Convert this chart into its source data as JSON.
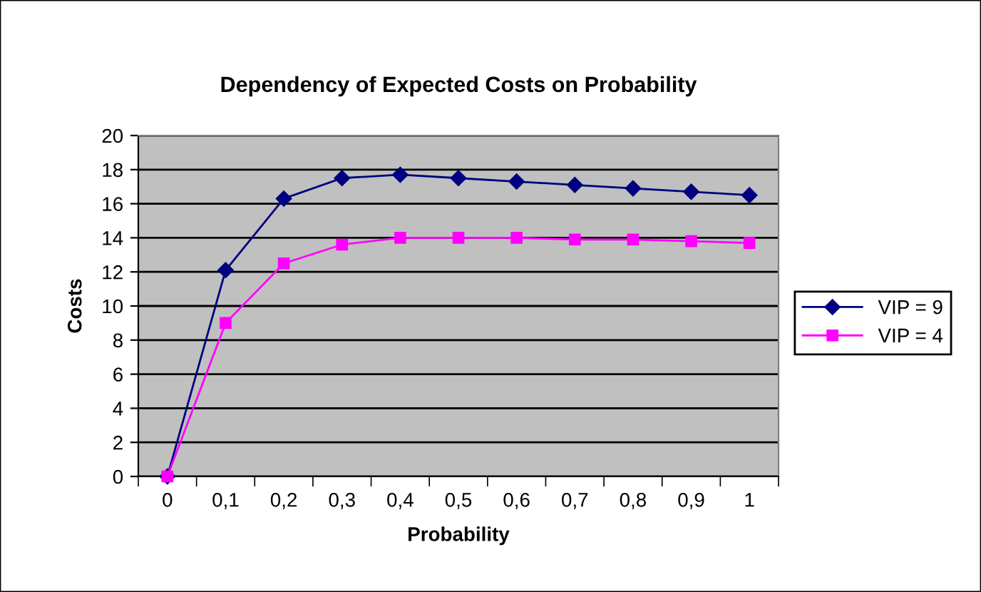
{
  "chart_data": {
    "type": "line",
    "title": "Dependency of Expected Costs on Probability",
    "xlabel": "Probability",
    "ylabel": "Costs",
    "categories": [
      "0",
      "0,1",
      "0,2",
      "0,3",
      "0,4",
      "0,5",
      "0,6",
      "0,7",
      "0,8",
      "0,9",
      "1"
    ],
    "series": [
      {
        "name": "VIP = 9",
        "color": "#000080",
        "marker": "diamond",
        "values": [
          0,
          12.1,
          16.3,
          17.5,
          17.7,
          17.5,
          17.3,
          17.1,
          16.9,
          16.7,
          16.5
        ]
      },
      {
        "name": "VIP = 4",
        "color": "#ff00ff",
        "marker": "square",
        "values": [
          0,
          9,
          12.5,
          13.6,
          14,
          14,
          14,
          13.9,
          13.9,
          13.8,
          13.7
        ]
      }
    ],
    "ylim": [
      0,
      20
    ],
    "yticks": [
      0,
      2,
      4,
      6,
      8,
      10,
      12,
      14,
      16,
      18,
      20
    ],
    "grid": "y",
    "legend": "right",
    "line_style": "solid"
  }
}
